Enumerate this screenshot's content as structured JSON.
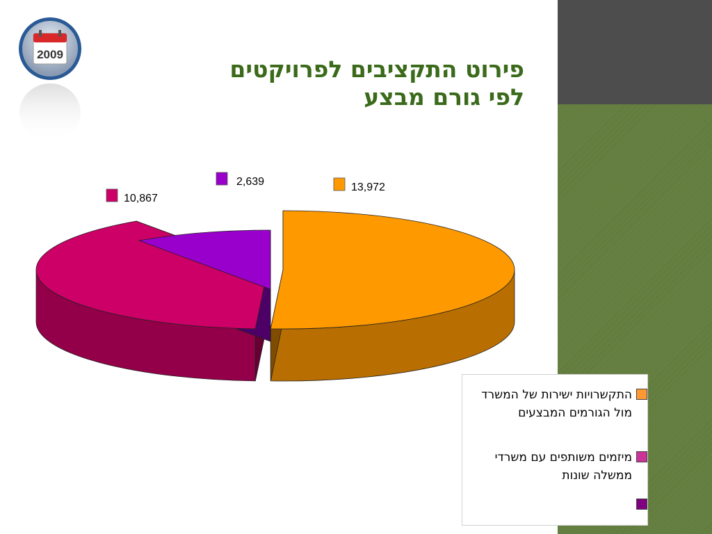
{
  "title": {
    "line1": "פירוט התקציבים לפרויקטים",
    "line2": "לפי גורם מבצע"
  },
  "logo": {
    "year": "2009",
    "icon": "calendar-icon"
  },
  "colors": {
    "orange": "#ff9900",
    "magenta": "#cc0066",
    "purple": "#9900cc",
    "legend_orange": "#ff9933",
    "legend_magenta": "#cc3399",
    "legend_purple": "#800080",
    "title": "#3a6a1a"
  },
  "chart_data": {
    "type": "pie",
    "style": "3d-exploded",
    "title": "",
    "slices": [
      {
        "label": "התקשרויות ישירות של המשרד מול הגורמים המבצעים",
        "value": 13972,
        "display": "13,972",
        "color": "#ff9900"
      },
      {
        "label": "מיזמים משותפים עם משרדי ממשלה שונות",
        "value": 10867,
        "display": "10,867",
        "color": "#cc0066"
      },
      {
        "label": "",
        "value": 2639,
        "display": "2,639",
        "color": "#9900cc"
      }
    ],
    "legend": [
      {
        "text": "התקשרויות ישירות של המשרד מול הגורמים המבצעים",
        "color": "#ff9933"
      },
      {
        "text": "מיזמים משותפים עם משרדי ממשלה שונות",
        "color": "#cc3399"
      },
      {
        "text": "",
        "color": "#800080"
      }
    ],
    "legend_position": "bottom-right"
  }
}
